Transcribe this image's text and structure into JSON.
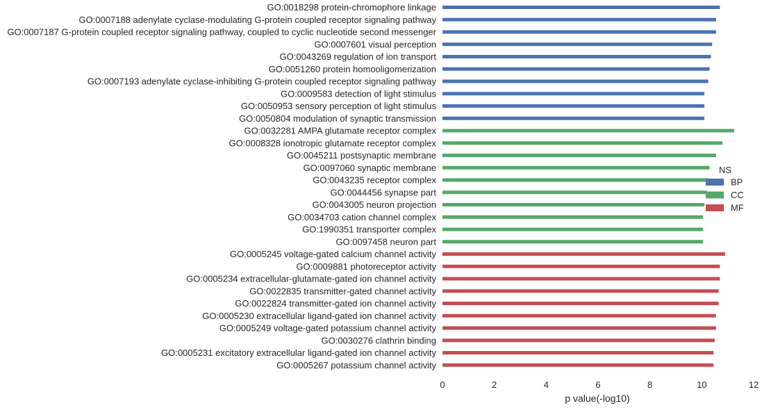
{
  "chart_data": {
    "type": "bar",
    "orientation": "horizontal",
    "xlabel": "p value(-log10)",
    "xlim": [
      0,
      12
    ],
    "xticks": [
      0,
      2,
      4,
      6,
      8,
      10,
      12
    ],
    "grid": false,
    "legend": {
      "title": "NS",
      "placement": "right",
      "entries": [
        {
          "name": "BP",
          "color": "#4c72b0"
        },
        {
          "name": "CC",
          "color": "#55a868"
        },
        {
          "name": "MF",
          "color": "#c44e52"
        }
      ]
    },
    "bars": [
      {
        "label": "GO:0018298 protein-chromophore linkage",
        "group": "BP",
        "value": 10.7
      },
      {
        "label": "GO:0007188 adenylate cyclase-modulating G-protein coupled receptor signaling pathway",
        "group": "BP",
        "value": 10.55
      },
      {
        "label": "GO:0007187 G-protein coupled receptor signaling pathway, coupled to cyclic nucleotide second messenger",
        "group": "BP",
        "value": 10.55
      },
      {
        "label": "GO:0007601 visual perception",
        "group": "BP",
        "value": 10.4
      },
      {
        "label": "GO:0043269 regulation of ion transport",
        "group": "BP",
        "value": 10.35
      },
      {
        "label": "GO:0051260 protein homooligomerization",
        "group": "BP",
        "value": 10.3
      },
      {
        "label": "GO:0007193 adenylate cyclase-inhibiting G-protein coupled receptor signaling pathway",
        "group": "BP",
        "value": 10.25
      },
      {
        "label": "GO:0009583 detection of light stimulus",
        "group": "BP",
        "value": 10.1
      },
      {
        "label": "GO:0050953 sensory perception of light stimulus",
        "group": "BP",
        "value": 10.1
      },
      {
        "label": "GO:0050804 modulation of synaptic transmission",
        "group": "BP",
        "value": 10.1
      },
      {
        "label": "GO:0032281 AMPA glutamate receptor complex",
        "group": "CC",
        "value": 11.25
      },
      {
        "label": "GO:0008328 ionotropic glutamate receptor complex",
        "group": "CC",
        "value": 10.8
      },
      {
        "label": "GO:0045211 postsynaptic membrane",
        "group": "CC",
        "value": 10.55
      },
      {
        "label": "GO:0097060 synaptic membrane",
        "group": "CC",
        "value": 10.3
      },
      {
        "label": "GO:0043235 receptor complex",
        "group": "CC",
        "value": 10.25
      },
      {
        "label": "GO:0044456 synapse part",
        "group": "CC",
        "value": 10.2
      },
      {
        "label": "GO:0043005 neuron projection",
        "group": "CC",
        "value": 10.1
      },
      {
        "label": "GO:0034703 cation channel complex",
        "group": "CC",
        "value": 10.05
      },
      {
        "label": "GO:1990351 transporter complex",
        "group": "CC",
        "value": 10.05
      },
      {
        "label": "GO:0097458 neuron part",
        "group": "CC",
        "value": 10.05
      },
      {
        "label": "GO:0005245 voltage-gated calcium channel activity",
        "group": "MF",
        "value": 10.9
      },
      {
        "label": "GO:0009881 photoreceptor activity",
        "group": "MF",
        "value": 10.7
      },
      {
        "label": "GO:0005234 extracellular-glutamate-gated ion channel activity",
        "group": "MF",
        "value": 10.7
      },
      {
        "label": "GO:0022835 transmitter-gated channel activity",
        "group": "MF",
        "value": 10.65
      },
      {
        "label": "GO:0022824 transmitter-gated ion channel activity",
        "group": "MF",
        "value": 10.65
      },
      {
        "label": "GO:0005230 extracellular ligand-gated ion channel activity",
        "group": "MF",
        "value": 10.55
      },
      {
        "label": "GO:0005249 voltage-gated potassium channel activity",
        "group": "MF",
        "value": 10.55
      },
      {
        "label": "GO:0030276 clathrin binding",
        "group": "MF",
        "value": 10.5
      },
      {
        "label": "GO:0005231 excitatory extracellular ligand-gated ion channel activity",
        "group": "MF",
        "value": 10.45
      },
      {
        "label": "GO:0005267 potassium channel activity",
        "group": "MF",
        "value": 10.45
      }
    ]
  }
}
